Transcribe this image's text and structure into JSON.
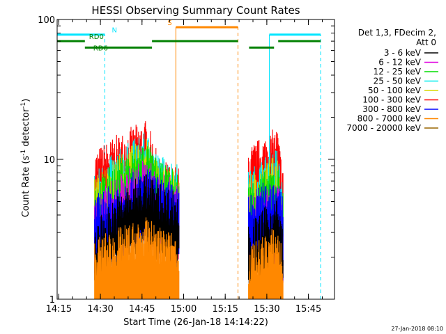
{
  "chart_data": {
    "type": "line",
    "title": "HESSI Observing Summary Count Rates",
    "xlabel": "Start Time (26-Jan-18 14:14:22)",
    "ylabel_main": "Count Rate (s",
    "ylabel_sup1": "-1",
    "ylabel_mid": " detector",
    "ylabel_sup2": "-1",
    "ylabel_end": ")",
    "x_unit": "minutes after 14:14:22",
    "xlim": [
      0,
      100
    ],
    "ylim": [
      1,
      100
    ],
    "log_y": true,
    "x_ticks": [
      {
        "label": "14:15",
        "value": 0.6
      },
      {
        "label": "14:30",
        "value": 15.6
      },
      {
        "label": "14:45",
        "value": 30.6
      },
      {
        "label": "15:00",
        "value": 45.6
      },
      {
        "label": "15:15",
        "value": 60.6
      },
      {
        "label": "15:30",
        "value": 75.6
      },
      {
        "label": "15:45",
        "value": 90.6
      }
    ],
    "y_ticks": [
      {
        "label": "1",
        "value": 1
      },
      {
        "label": "10",
        "value": 10
      },
      {
        "label": "100",
        "value": 100
      }
    ],
    "legend_header": [
      "Det 1,3, FDecim 2,",
      "Att 0"
    ],
    "legend_placement": "right",
    "series": [
      {
        "name": "3 - 6 keV",
        "color": "#000000",
        "segments": [
          [
            13.5,
            2.5,
            32.0,
            6.0,
            36.5,
            5.0,
            44.0
          ],
          [
            69.0,
            2.5,
            79.5,
            4.0,
            80.5,
            3.0,
            81.5
          ]
        ]
      },
      {
        "name": "6 - 12 keV",
        "color": "#e000e0",
        "segments": [
          [
            13.5,
            4.0,
            32.0,
            7.5,
            36.5,
            6.0,
            44.0
          ],
          [
            69.0,
            4.0,
            79.5,
            5.0,
            80.5,
            4.0,
            81.5
          ]
        ]
      },
      {
        "name": "12 - 25 keV",
        "color": "#00dd00",
        "segments": [
          [
            13.5,
            5.0,
            32.0,
            10.0,
            36.5,
            7.0,
            44.0
          ],
          [
            69.0,
            5.0,
            79.5,
            7.0,
            80.5,
            5.0,
            81.5
          ]
        ]
      },
      {
        "name": "25 - 50 keV",
        "color": "#00eeee",
        "segments": [
          [
            13.5,
            6.0,
            32.0,
            11.5,
            36.5,
            8.0,
            44.0
          ],
          [
            69.0,
            6.0,
            79.5,
            9.0,
            80.5,
            6.0,
            81.5
          ]
        ]
      },
      {
        "name": "50 - 100 keV",
        "color": "#d8d800",
        "segments": [
          [
            13.5,
            5.5,
            32.0,
            10.5,
            36.5,
            7.0,
            44.0
          ],
          [
            69.0,
            5.5,
            79.5,
            8.0,
            80.5,
            5.5,
            81.5
          ]
        ]
      },
      {
        "name": "100 - 300 keV",
        "color": "#ff0000",
        "segments": [
          [
            13.5,
            8.5,
            32.0,
            14.0,
            36.5,
            7.5,
            44.0
          ],
          [
            69.0,
            9.0,
            79.5,
            12.5,
            80.5,
            8.5,
            81.5
          ]
        ]
      },
      {
        "name": "300 - 800 keV",
        "color": "#0000ff",
        "segments": [
          [
            13.5,
            4.0,
            32.0,
            6.5,
            36.5,
            5.5,
            44.0
          ],
          [
            69.0,
            4.0,
            79.5,
            6.0,
            80.5,
            4.5,
            81.5
          ]
        ]
      },
      {
        "name": "800 - 7000 keV",
        "color": "#ff8800",
        "segments": [
          [
            13.5,
            2.0,
            32.0,
            2.8,
            36.5,
            2.4,
            44.0
          ],
          [
            69.0,
            1.7,
            79.5,
            2.5,
            80.5,
            2.0,
            81.5
          ]
        ]
      },
      {
        "name": "7000 - 20000 keV",
        "color": "#996600",
        "segments": []
      }
    ],
    "flags": [
      {
        "label": "N",
        "color": "#00e5ff",
        "y": 78,
        "spans": [
          [
            0,
            17.2
          ],
          [
            76.5,
            95
          ]
        ]
      },
      {
        "label": "S",
        "color": "#ff8800",
        "y": 88,
        "spans": [
          [
            42.8,
            65.2
          ]
        ]
      },
      {
        "label": "RD0",
        "color": "#008000",
        "y": 70,
        "spans": [
          [
            0,
            10
          ]
        ]
      },
      {
        "label": "RD6",
        "color": "#008000",
        "y": 63,
        "spans": [
          [
            10,
            34.2
          ],
          [
            69.2,
            78.2
          ]
        ]
      },
      {
        "label": "",
        "color": "#008000",
        "y": 70,
        "spans": [
          [
            34.2,
            65.2
          ],
          [
            79.7,
            95
          ]
        ]
      }
    ],
    "vlines": [
      {
        "x": 0.0,
        "color": "#00e5ff",
        "style": "solid",
        "y0": 1,
        "y1": 78
      },
      {
        "x": 17.2,
        "color": "#00e5ff",
        "style": "dashed",
        "y0": 1,
        "y1": 78
      },
      {
        "x": 76.5,
        "color": "#00e5ff",
        "style": "solid",
        "y0": 1,
        "y1": 78
      },
      {
        "x": 95.0,
        "color": "#00e5ff",
        "style": "dashed",
        "y0": 1,
        "y1": 78
      },
      {
        "x": 42.8,
        "color": "#ff8800",
        "style": "solid",
        "y0": 1,
        "y1": 88
      },
      {
        "x": 65.2,
        "color": "#ff8800",
        "style": "dashed",
        "y0": 1,
        "y1": 88
      }
    ]
  },
  "timestamp": "27-Jan-2018 08:10"
}
